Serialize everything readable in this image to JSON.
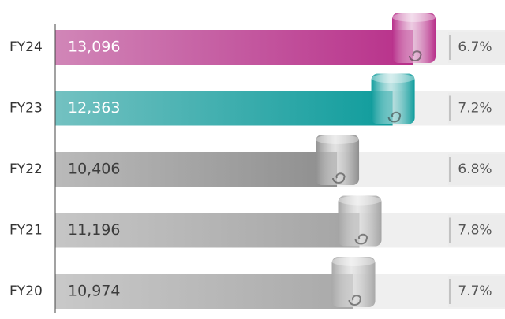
{
  "chart_data": {
    "type": "bar",
    "categories": [
      "FY24",
      "FY23",
      "FY22",
      "FY21",
      "FY20"
    ],
    "values": [
      13096,
      12363,
      10406,
      11196,
      10974
    ],
    "value_labels": [
      "13,096",
      "12,363",
      "10,406",
      "11,196",
      "10,974"
    ],
    "colors": [
      "#b8308a",
      "#0e9c9c",
      "#8e8e8e",
      "#a4a4a4",
      "#a9a9a9"
    ],
    "percent": {
      "values": [
        6.7,
        7.2,
        6.8,
        7.8,
        7.7
      ],
      "value_labels": [
        "6.7%",
        "7.2%",
        "6.8%",
        "7.8%",
        "7.7%"
      ]
    }
  }
}
